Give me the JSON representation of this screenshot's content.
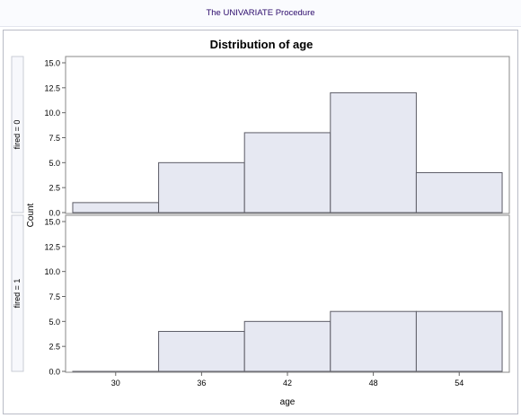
{
  "header": {
    "procedure_title": "The UNIVARIATE Procedure"
  },
  "chart_data": {
    "type": "bar",
    "title": "Distribution of age",
    "xlabel": "age",
    "ylabel": "Count",
    "x_ticks": [
      30,
      36,
      42,
      48,
      54
    ],
    "bin_width": 6,
    "bin_midpoints": [
      30,
      36,
      42,
      48,
      54
    ],
    "xlim": [
      26.5,
      57.5
    ],
    "ylim": [
      0,
      15
    ],
    "y_ticks": [
      "0.0",
      "2.5",
      "5.0",
      "7.5",
      "10.0",
      "12.5",
      "15.0"
    ],
    "panels": [
      {
        "label": "fired = 0",
        "values": [
          1,
          5,
          8,
          12,
          4
        ]
      },
      {
        "label": "fired = 1",
        "values": [
          0,
          4,
          5,
          6,
          6
        ]
      }
    ],
    "colors": {
      "bar_fill": "#e6e8f2",
      "bar_stroke": "#5c5c66",
      "axis": "#666666"
    }
  }
}
